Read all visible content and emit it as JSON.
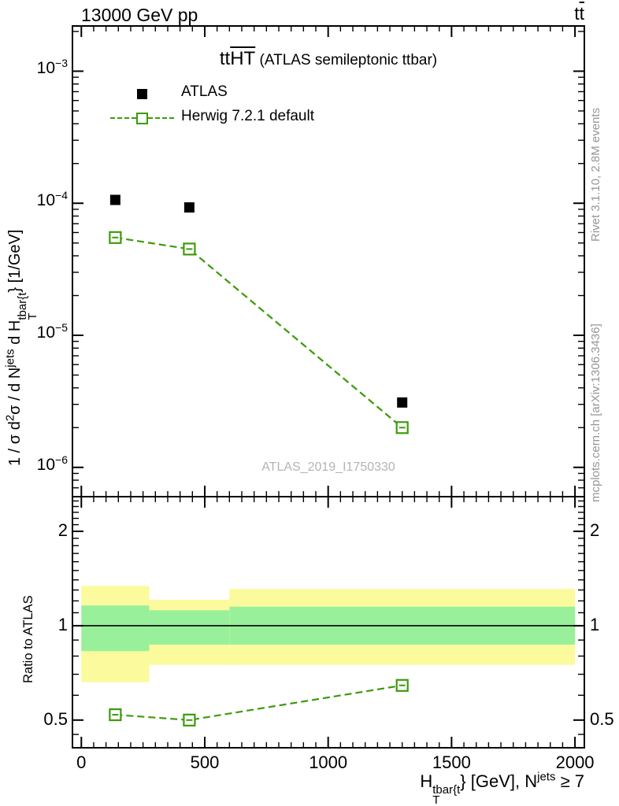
{
  "header": {
    "left": "13000 GeV pp",
    "right_prefix": "t",
    "right_overline": "t"
  },
  "main_title": {
    "prefix": "tt",
    "overline": "HT",
    "suffix": " (ATLAS semileptonic ttbar)"
  },
  "legend": [
    {
      "label": "ATLAS",
      "marker": "filled-black-square"
    },
    {
      "label": "Herwig 7.2.1 default",
      "marker": "green-dashed-open-square"
    }
  ],
  "watermark": "ATLAS_2019_I1750330",
  "side_text": {
    "top": "Rivet 3.1.10,  2.8M events",
    "bottom": "mcplots.cern.ch [arXiv:1306.3436]"
  },
  "y_axis_title": {
    "p1": "1 / ",
    "sigma1": "σ",
    "p2": " d",
    "sup1": "2",
    "sigma2": "σ",
    "p3": " / d N",
    "sup2": "jets",
    "p4": " d H",
    "stack_sup": "tbar{t",
    "stack_sub": "T",
    "p5": "} [1/GeV]"
  },
  "x_axis_title": {
    "base": "H",
    "stack_sup": "tbar{t",
    "stack_sub": "T",
    "rest": "} [GeV], N",
    "sup2": "jets",
    "rest2": " ≥ 7"
  },
  "ratio_axis_title": "Ratio to ATLAS",
  "colors": {
    "atlas": "#000000",
    "herwig_green": "#3c9b0a",
    "band_outer_yellow": "#fbfb9d",
    "band_inner_green": "#99f09b",
    "frame": "#000000",
    "gray_text": "#969696",
    "watermark_gray": "#b4b4b4"
  },
  "chart_data": [
    {
      "type": "scatter",
      "panel": "main",
      "title": "ttHT (ATLAS semileptonic ttbar)",
      "xlabel": "HT_tbar{t} [GeV], Njets >= 7",
      "ylabel": "1/sigma d2sigma / dNjets dHT_tbar{t} [1/GeV]",
      "xlim": [
        -36,
        2038
      ],
      "ylog": true,
      "ylim": [
        6e-07,
        0.0022
      ],
      "x_major_ticks": [
        0,
        500,
        1000,
        1500,
        2000
      ],
      "x_minor_step": 50,
      "y_major_ticks": [
        0.001,
        0.0001,
        1e-05,
        1e-06
      ],
      "bin_edges": [
        [
          0,
          275
        ],
        [
          275,
          600
        ],
        [
          600,
          2000
        ]
      ],
      "series": [
        {
          "name": "ATLAS",
          "marker": "filled-square",
          "color": "#000000",
          "x": [
            137.5,
            437.5,
            1300
          ],
          "y": [
            0.000106,
            9.3e-05,
            3.1e-06
          ]
        },
        {
          "name": "Herwig 7.2.1 default",
          "marker": "open-square",
          "line": "dashed",
          "color": "#3c9b0a",
          "x": [
            137.5,
            437.5,
            1300
          ],
          "y": [
            5.5e-05,
            4.5e-05,
            2e-06
          ]
        }
      ],
      "legend_position": "top-left",
      "grid": false
    },
    {
      "type": "ratio",
      "panel": "ratio",
      "ylabel": "Ratio to ATLAS",
      "ylog": true,
      "ylim": [
        0.408,
        2.58
      ],
      "y_major_ticks": [
        {
          "v": 2,
          "label": "2"
        },
        {
          "v": 1,
          "label": "1"
        },
        {
          "v": 0.5,
          "label": "0.5"
        }
      ],
      "y_minor_ticks": [
        0.45,
        0.6,
        0.7,
        0.8,
        0.9,
        1.1,
        1.2,
        1.3,
        1.4,
        1.5,
        1.6,
        1.7,
        1.8,
        1.9,
        2.1,
        2.2,
        2.3,
        2.4,
        2.5
      ],
      "reference_line": 1,
      "bands": {
        "bins": [
          [
            0,
            275
          ],
          [
            275,
            600
          ],
          [
            600,
            2000
          ]
        ],
        "yellow": [
          [
            0.66,
            1.34
          ],
          [
            0.75,
            1.21
          ],
          [
            0.75,
            1.31
          ]
        ],
        "green": [
          [
            0.83,
            1.16
          ],
          [
            0.87,
            1.12
          ],
          [
            0.87,
            1.15
          ]
        ]
      },
      "series": [
        {
          "name": "Herwig 7.2.1 default",
          "marker": "open-square",
          "line": "dashed",
          "color": "#3c9b0a",
          "x": [
            137.5,
            437.5,
            1300
          ],
          "y": [
            0.52,
            0.5,
            0.645
          ]
        }
      ],
      "grid": false
    }
  ]
}
